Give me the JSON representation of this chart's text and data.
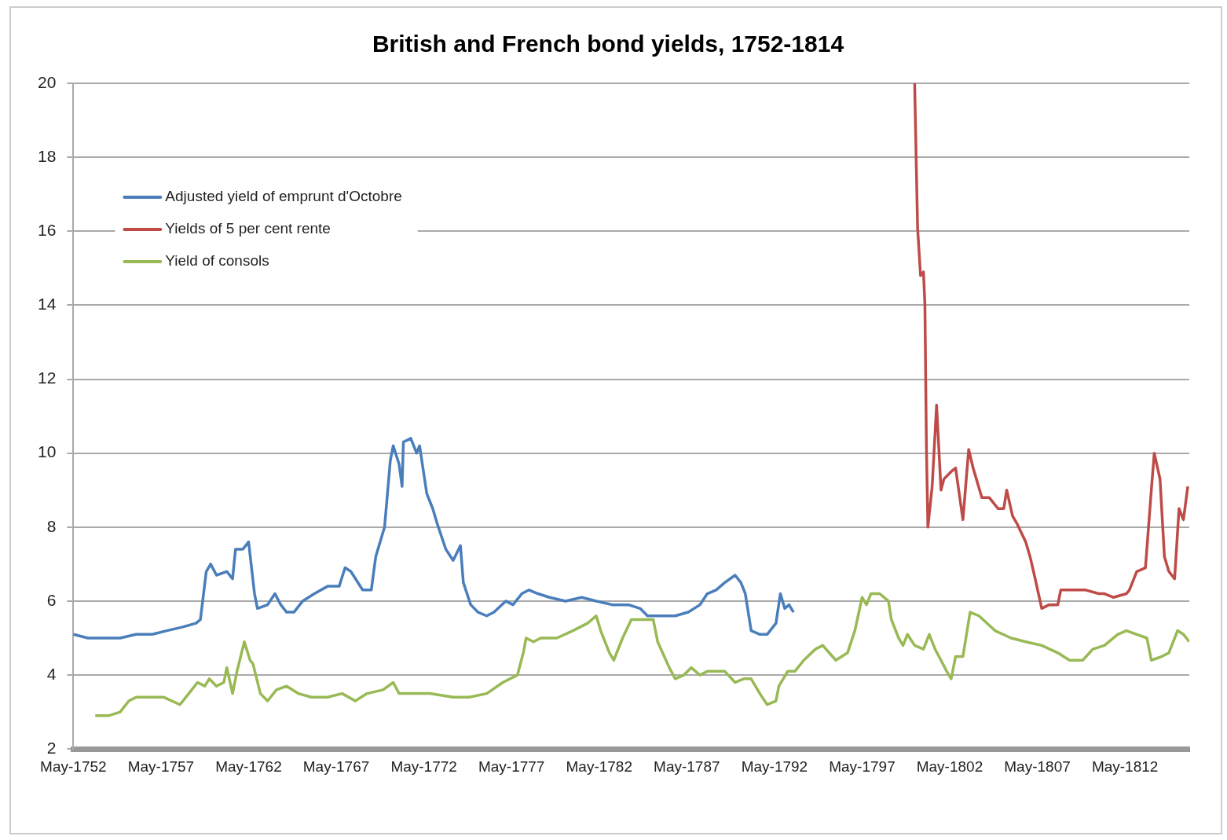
{
  "chart_data": {
    "type": "line",
    "title": "British and French bond yields, 1752-1814",
    "xlim": [
      "1752-05",
      "1816-01"
    ],
    "xticks": [
      {
        "value": "1752-05",
        "label": "May-1752"
      },
      {
        "value": "1757-05",
        "label": "May-1757"
      },
      {
        "value": "1762-05",
        "label": "May-1762"
      },
      {
        "value": "1767-05",
        "label": "May-1767"
      },
      {
        "value": "1772-05",
        "label": "May-1772"
      },
      {
        "value": "1777-05",
        "label": "May-1777"
      },
      {
        "value": "1782-05",
        "label": "May-1782"
      },
      {
        "value": "1787-05",
        "label": "May-1787"
      },
      {
        "value": "1792-05",
        "label": "May-1792"
      },
      {
        "value": "1797-05",
        "label": "May-1797"
      },
      {
        "value": "1802-05",
        "label": "May-1802"
      },
      {
        "value": "1807-05",
        "label": "May-1807"
      },
      {
        "value": "1812-05",
        "label": "May-1812"
      }
    ],
    "ylim": [
      2,
      20
    ],
    "yticks": [
      2,
      4,
      6,
      8,
      10,
      12,
      14,
      16,
      18,
      20
    ],
    "grid": "y",
    "legend": "top left",
    "marker": "none",
    "line_style": "solid",
    "series": [
      {
        "name": "Adjusted yield of emprunt d'Octobre",
        "color": "#4a7ebb",
        "x": [
          "1752-05",
          "1753-03",
          "1754-02",
          "1755-01",
          "1755-12",
          "1756-11",
          "1757-09",
          "1758-08",
          "1759-05",
          "1759-08",
          "1759-12",
          "1760-03",
          "1760-07",
          "1761-02",
          "1761-06",
          "1761-08",
          "1762-01",
          "1762-05",
          "1762-09",
          "1762-11",
          "1763-06",
          "1763-11",
          "1764-03",
          "1764-07",
          "1764-12",
          "1765-06",
          "1766-02",
          "1766-11",
          "1767-07",
          "1767-11",
          "1768-03",
          "1768-11",
          "1769-05",
          "1769-08",
          "1770-02",
          "1770-06",
          "1770-08",
          "1770-12",
          "1771-02",
          "1771-03",
          "1771-08",
          "1771-12",
          "1772-02",
          "1772-07",
          "1772-11",
          "1773-02",
          "1773-08",
          "1774-01",
          "1774-06",
          "1774-08",
          "1775-01",
          "1775-06",
          "1775-12",
          "1776-05",
          "1777-01",
          "1777-06",
          "1777-12",
          "1778-05",
          "1778-11",
          "1779-07",
          "1780-06",
          "1781-05",
          "1782-03",
          "1783-02",
          "1784-01",
          "1784-09",
          "1785-02",
          "1785-11",
          "1786-09",
          "1787-06",
          "1788-02",
          "1788-07",
          "1789-01",
          "1789-07",
          "1790-02",
          "1790-06",
          "1790-09",
          "1791-01",
          "1791-07",
          "1791-12",
          "1792-06",
          "1792-09",
          "1792-12",
          "1793-03",
          "1793-06"
        ],
        "values": [
          5.1,
          5.0,
          5.0,
          5.0,
          5.1,
          5.1,
          5.2,
          5.3,
          5.4,
          5.5,
          6.8,
          7.0,
          6.7,
          6.8,
          6.6,
          7.4,
          7.4,
          7.6,
          6.2,
          5.8,
          5.9,
          6.2,
          5.9,
          5.7,
          5.7,
          6.0,
          6.2,
          6.4,
          6.4,
          6.9,
          6.8,
          6.3,
          6.3,
          7.2,
          8.0,
          9.8,
          10.2,
          9.7,
          9.1,
          10.3,
          10.4,
          10.0,
          10.2,
          8.9,
          8.5,
          8.1,
          7.4,
          7.1,
          7.5,
          6.5,
          5.9,
          5.7,
          5.6,
          5.7,
          6.0,
          5.9,
          6.2,
          6.3,
          6.2,
          6.1,
          6.0,
          6.1,
          6.0,
          5.9,
          5.9,
          5.8,
          5.6,
          5.6,
          5.6,
          5.7,
          5.9,
          6.2,
          6.3,
          6.5,
          6.7,
          6.5,
          6.2,
          5.2,
          5.1,
          5.1,
          5.4,
          6.2,
          5.8,
          5.9,
          5.7
        ]
      },
      {
        "name": "Yields of 5 per cent rente",
        "color": "#be4b48",
        "x": [
          "1800-05",
          "1800-06",
          "1800-07",
          "1800-09",
          "1800-11",
          "1800-12",
          "1801-01",
          "1801-02",
          "1801-05",
          "1801-08",
          "1801-11",
          "1802-01",
          "1802-06",
          "1802-09",
          "1803-02",
          "1803-06",
          "1803-09",
          "1804-03",
          "1804-08",
          "1805-02",
          "1805-06",
          "1805-08",
          "1805-12",
          "1806-03",
          "1806-09",
          "1806-12",
          "1807-03",
          "1807-08",
          "1808-01",
          "1808-07",
          "1808-09",
          "1809-06",
          "1810-02",
          "1810-11",
          "1811-03",
          "1811-09",
          "1812-06",
          "1812-08",
          "1813-01",
          "1813-07",
          "1813-11",
          "1814-01",
          "1814-05",
          "1814-08",
          "1814-11",
          "1815-03",
          "1815-06",
          "1815-09",
          "1815-12"
        ],
        "values": [
          20,
          18.0,
          16.1,
          14.8,
          14.9,
          14.0,
          10.2,
          8.0,
          9.1,
          11.3,
          9.0,
          9.3,
          9.5,
          9.6,
          8.2,
          10.1,
          9.6,
          8.8,
          8.8,
          8.5,
          8.5,
          9.0,
          8.3,
          8.1,
          7.6,
          7.2,
          6.7,
          5.8,
          5.9,
          5.9,
          6.3,
          6.3,
          6.3,
          6.2,
          6.2,
          6.1,
          6.2,
          6.3,
          6.8,
          6.9,
          9.0,
          10.0,
          9.3,
          7.2,
          6.8,
          6.6,
          8.5,
          8.2,
          9.1
        ]
      },
      {
        "name": "Yield of consols",
        "color": "#98b954",
        "x": [
          "1753-08",
          "1754-05",
          "1755-01",
          "1755-07",
          "1755-12",
          "1756-11",
          "1757-07",
          "1758-06",
          "1759-02",
          "1759-06",
          "1759-11",
          "1760-02",
          "1760-07",
          "1760-12",
          "1761-02",
          "1761-06",
          "1761-09",
          "1762-02",
          "1762-06",
          "1762-08",
          "1763-01",
          "1763-06",
          "1763-12",
          "1764-07",
          "1765-03",
          "1765-12",
          "1766-11",
          "1767-09",
          "1768-06",
          "1769-02",
          "1770-01",
          "1770-08",
          "1770-12",
          "1771-11",
          "1772-09",
          "1774-01",
          "1774-12",
          "1775-12",
          "1776-11",
          "1777-09",
          "1778-01",
          "1778-03",
          "1778-08",
          "1779-01",
          "1779-12",
          "1780-11",
          "1781-09",
          "1782-03",
          "1782-06",
          "1782-12",
          "1783-03",
          "1783-09",
          "1784-03",
          "1784-11",
          "1785-06",
          "1785-09",
          "1786-05",
          "1786-09",
          "1787-03",
          "1787-08",
          "1788-02",
          "1788-07",
          "1789-01",
          "1789-07",
          "1790-02",
          "1790-08",
          "1791-01",
          "1791-07",
          "1791-12",
          "1792-06",
          "1792-08",
          "1793-02",
          "1793-07",
          "1794-01",
          "1794-09",
          "1795-02",
          "1795-11",
          "1796-07",
          "1796-12",
          "1797-05",
          "1797-08",
          "1797-11",
          "1798-05",
          "1798-11",
          "1799-01",
          "1799-06",
          "1799-09",
          "1799-12",
          "1800-05",
          "1800-11",
          "1801-03",
          "1801-07",
          "1801-11",
          "1802-03",
          "1802-06",
          "1802-09",
          "1803-02",
          "1803-07",
          "1804-01",
          "1804-12",
          "1805-11",
          "1806-09",
          "1807-08",
          "1808-07",
          "1809-03",
          "1809-12",
          "1810-07",
          "1811-03",
          "1811-12",
          "1812-06",
          "1813-01",
          "1813-08",
          "1813-11",
          "1814-06",
          "1814-11",
          "1815-05",
          "1815-09",
          "1816-01"
        ],
        "values": [
          2.9,
          2.9,
          3.0,
          3.3,
          3.4,
          3.4,
          3.4,
          3.2,
          3.6,
          3.8,
          3.7,
          3.9,
          3.7,
          3.8,
          4.2,
          3.5,
          4.1,
          4.9,
          4.4,
          4.3,
          3.5,
          3.3,
          3.6,
          3.7,
          3.5,
          3.4,
          3.4,
          3.5,
          3.3,
          3.5,
          3.6,
          3.8,
          3.5,
          3.5,
          3.5,
          3.4,
          3.4,
          3.5,
          3.8,
          4.0,
          4.6,
          5.0,
          4.9,
          5.0,
          5.0,
          5.2,
          5.4,
          5.6,
          5.2,
          4.6,
          4.4,
          5.0,
          5.5,
          5.5,
          5.5,
          4.9,
          4.2,
          3.9,
          4.0,
          4.2,
          4.0,
          4.1,
          4.1,
          4.1,
          3.8,
          3.9,
          3.9,
          3.5,
          3.2,
          3.3,
          3.7,
          4.1,
          4.1,
          4.4,
          4.7,
          4.8,
          4.4,
          4.6,
          5.2,
          6.1,
          5.9,
          6.2,
          6.2,
          6.0,
          5.5,
          5.0,
          4.8,
          5.1,
          4.8,
          4.7,
          5.1,
          4.7,
          4.4,
          4.1,
          3.9,
          4.5,
          4.5,
          5.7,
          5.6,
          5.2,
          5.0,
          4.9,
          4.8,
          4.6,
          4.4,
          4.4,
          4.7,
          4.8,
          5.1,
          5.2,
          5.1,
          5.0,
          4.4,
          4.5,
          4.6,
          5.2,
          5.1,
          4.9
        ]
      }
    ]
  }
}
